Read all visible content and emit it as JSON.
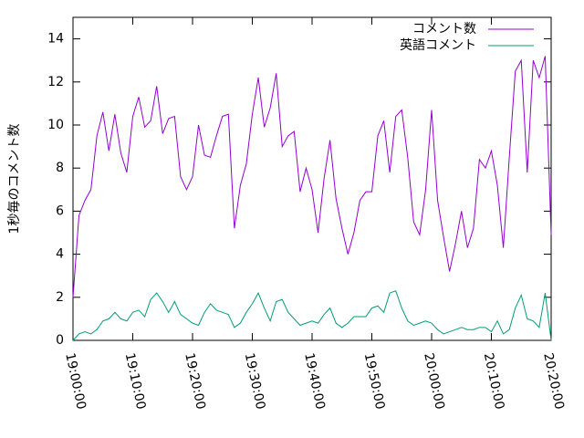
{
  "chart_data": {
    "type": "line",
    "y_label": "1秒毎のコメント数",
    "x": [
      "19:00:00",
      "19:01:00",
      "19:02:00",
      "19:03:00",
      "19:04:00",
      "19:05:00",
      "19:06:00",
      "19:07:00",
      "19:08:00",
      "19:09:00",
      "19:10:00",
      "19:11:00",
      "19:12:00",
      "19:13:00",
      "19:14:00",
      "19:15:00",
      "19:16:00",
      "19:17:00",
      "19:18:00",
      "19:19:00",
      "19:20:00",
      "19:21:00",
      "19:22:00",
      "19:23:00",
      "19:24:00",
      "19:25:00",
      "19:26:00",
      "19:27:00",
      "19:28:00",
      "19:29:00",
      "19:30:00",
      "19:31:00",
      "19:32:00",
      "19:33:00",
      "19:34:00",
      "19:35:00",
      "19:36:00",
      "19:37:00",
      "19:38:00",
      "19:39:00",
      "19:40:00",
      "19:41:00",
      "19:42:00",
      "19:43:00",
      "19:44:00",
      "19:45:00",
      "19:46:00",
      "19:47:00",
      "19:48:00",
      "19:49:00",
      "19:50:00",
      "19:51:00",
      "19:52:00",
      "19:53:00",
      "19:54:00",
      "19:55:00",
      "19:56:00",
      "19:57:00",
      "19:58:00",
      "19:59:00",
      "20:00:00",
      "20:01:00",
      "20:02:00",
      "20:03:00",
      "20:04:00",
      "20:05:00",
      "20:06:00",
      "20:07:00",
      "20:08:00",
      "20:09:00",
      "20:10:00",
      "20:11:00",
      "20:12:00",
      "20:13:00",
      "20:14:00",
      "20:15:00",
      "20:16:00",
      "20:17:00",
      "20:18:00",
      "20:19:00",
      "20:20:00"
    ],
    "series": [
      {
        "name": "コメント数",
        "color": "#9400d3",
        "values": [
          2.0,
          5.8,
          6.5,
          7.0,
          9.5,
          10.6,
          8.8,
          10.5,
          8.7,
          7.8,
          10.4,
          11.3,
          9.9,
          10.2,
          11.8,
          9.6,
          10.3,
          10.4,
          7.6,
          7.0,
          7.6,
          10.0,
          8.6,
          8.5,
          9.5,
          10.4,
          10.5,
          5.2,
          7.2,
          8.2,
          10.5,
          12.2,
          9.9,
          10.8,
          12.4,
          9.0,
          9.5,
          9.7,
          6.9,
          8.0,
          7.0,
          5.0,
          7.5,
          9.3,
          6.6,
          5.2,
          4.0,
          5.0,
          6.5,
          6.9,
          6.9,
          9.5,
          10.2,
          7.8,
          10.4,
          10.7,
          8.5,
          5.5,
          4.9,
          7.0,
          10.7,
          6.5,
          4.8,
          3.2,
          4.5,
          6.0,
          4.3,
          5.2,
          8.4,
          8.0,
          8.8,
          7.2,
          4.3,
          8.5,
          12.5,
          13.0,
          7.8,
          13.0,
          12.2,
          13.2,
          4.9
        ]
      },
      {
        "name": "英語コメント",
        "color": "#009e73",
        "values": [
          0,
          0.3,
          0.4,
          0.3,
          0.5,
          0.9,
          1.0,
          1.3,
          1.0,
          0.9,
          1.3,
          1.4,
          1.1,
          1.9,
          2.2,
          1.8,
          1.3,
          1.8,
          1.2,
          1.0,
          0.8,
          0.7,
          1.3,
          1.7,
          1.4,
          1.3,
          1.2,
          0.6,
          0.8,
          1.3,
          1.7,
          2.2,
          1.5,
          0.9,
          1.8,
          1.9,
          1.3,
          1.0,
          0.7,
          0.8,
          0.9,
          0.8,
          1.2,
          1.5,
          0.8,
          0.6,
          0.8,
          1.1,
          1.1,
          1.1,
          1.5,
          1.6,
          1.3,
          2.2,
          2.3,
          1.5,
          0.9,
          0.7,
          0.8,
          0.9,
          0.8,
          0.5,
          0.3,
          0.4,
          0.5,
          0.6,
          0.5,
          0.5,
          0.6,
          0.6,
          0.4,
          0.9,
          0.3,
          0.5,
          1.5,
          2.1,
          1.0,
          0.9,
          0.6,
          2.2,
          0
        ]
      }
    ],
    "xlim": [
      "19:00:00",
      "20:20:00"
    ],
    "xticks": [
      "19:00:00",
      "19:10:00",
      "19:20:00",
      "19:30:00",
      "19:40:00",
      "19:50:00",
      "20:00:00",
      "20:10:00",
      "20:20:00"
    ],
    "ylim": [
      0,
      15
    ],
    "yticks": [
      0,
      2,
      4,
      6,
      8,
      10,
      12,
      14
    ],
    "legend": "top-right"
  }
}
